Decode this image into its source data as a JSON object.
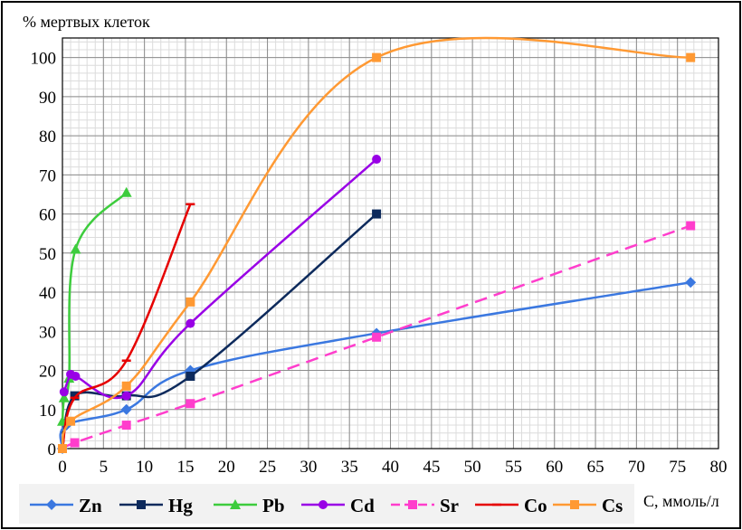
{
  "chart_data": {
    "type": "line",
    "ylabel": "% мертвых клеток",
    "xlabel": "С, ммоль/л",
    "xlim": [
      0,
      80
    ],
    "ylim": [
      0,
      105
    ],
    "xticks": [
      0,
      5,
      10,
      15,
      20,
      25,
      30,
      35,
      40,
      45,
      50,
      55,
      60,
      65,
      70,
      75,
      80
    ],
    "yticks": [
      0,
      10,
      20,
      30,
      40,
      50,
      60,
      70,
      80,
      90,
      100
    ],
    "grid": true,
    "legend_position": "bottom",
    "series": [
      {
        "name": "Zn",
        "color": "#3b78e0",
        "marker": "diamond",
        "dash": false,
        "x": [
          0,
          0.5,
          7.8,
          15.6,
          38.3,
          76.6
        ],
        "y": [
          0,
          6,
          10,
          20,
          29.5,
          42.5
        ]
      },
      {
        "name": "Hg",
        "color": "#0d2a5c",
        "marker": "square",
        "dash": false,
        "x": [
          0,
          1.5,
          7.8,
          15.6,
          38.3
        ],
        "y": [
          0,
          13.5,
          13.5,
          18.5,
          60
        ]
      },
      {
        "name": "Pb",
        "color": "#3dcc3d",
        "marker": "triangle",
        "dash": false,
        "x": [
          0,
          0.2,
          0.8,
          1.6,
          7.8
        ],
        "y": [
          7,
          13,
          18,
          51,
          65.5
        ]
      },
      {
        "name": "Cd",
        "color": "#9900e6",
        "marker": "circle",
        "dash": false,
        "x": [
          0.2,
          1,
          1.6,
          7.8,
          15.6,
          38.3
        ],
        "y": [
          14.5,
          19,
          18.5,
          13.5,
          32,
          74
        ]
      },
      {
        "name": "Sr",
        "color": "#ff3dcc",
        "marker": "square",
        "dash": true,
        "x": [
          0,
          1.5,
          7.8,
          15.6,
          38.3,
          76.6
        ],
        "y": [
          0,
          1.5,
          6,
          11.5,
          28.5,
          57
        ]
      },
      {
        "name": "Co",
        "color": "#e60000",
        "marker": "dash",
        "dash": false,
        "x": [
          0,
          1.5,
          7.8,
          15.6
        ],
        "y": [
          0,
          13,
          22.5,
          62.5
        ]
      },
      {
        "name": "Cs",
        "color": "#ff9933",
        "marker": "square",
        "dash": false,
        "x": [
          0,
          1,
          7.8,
          15.6,
          38.3,
          76.6
        ],
        "y": [
          0,
          7,
          16,
          37.5,
          100,
          100
        ]
      }
    ]
  }
}
